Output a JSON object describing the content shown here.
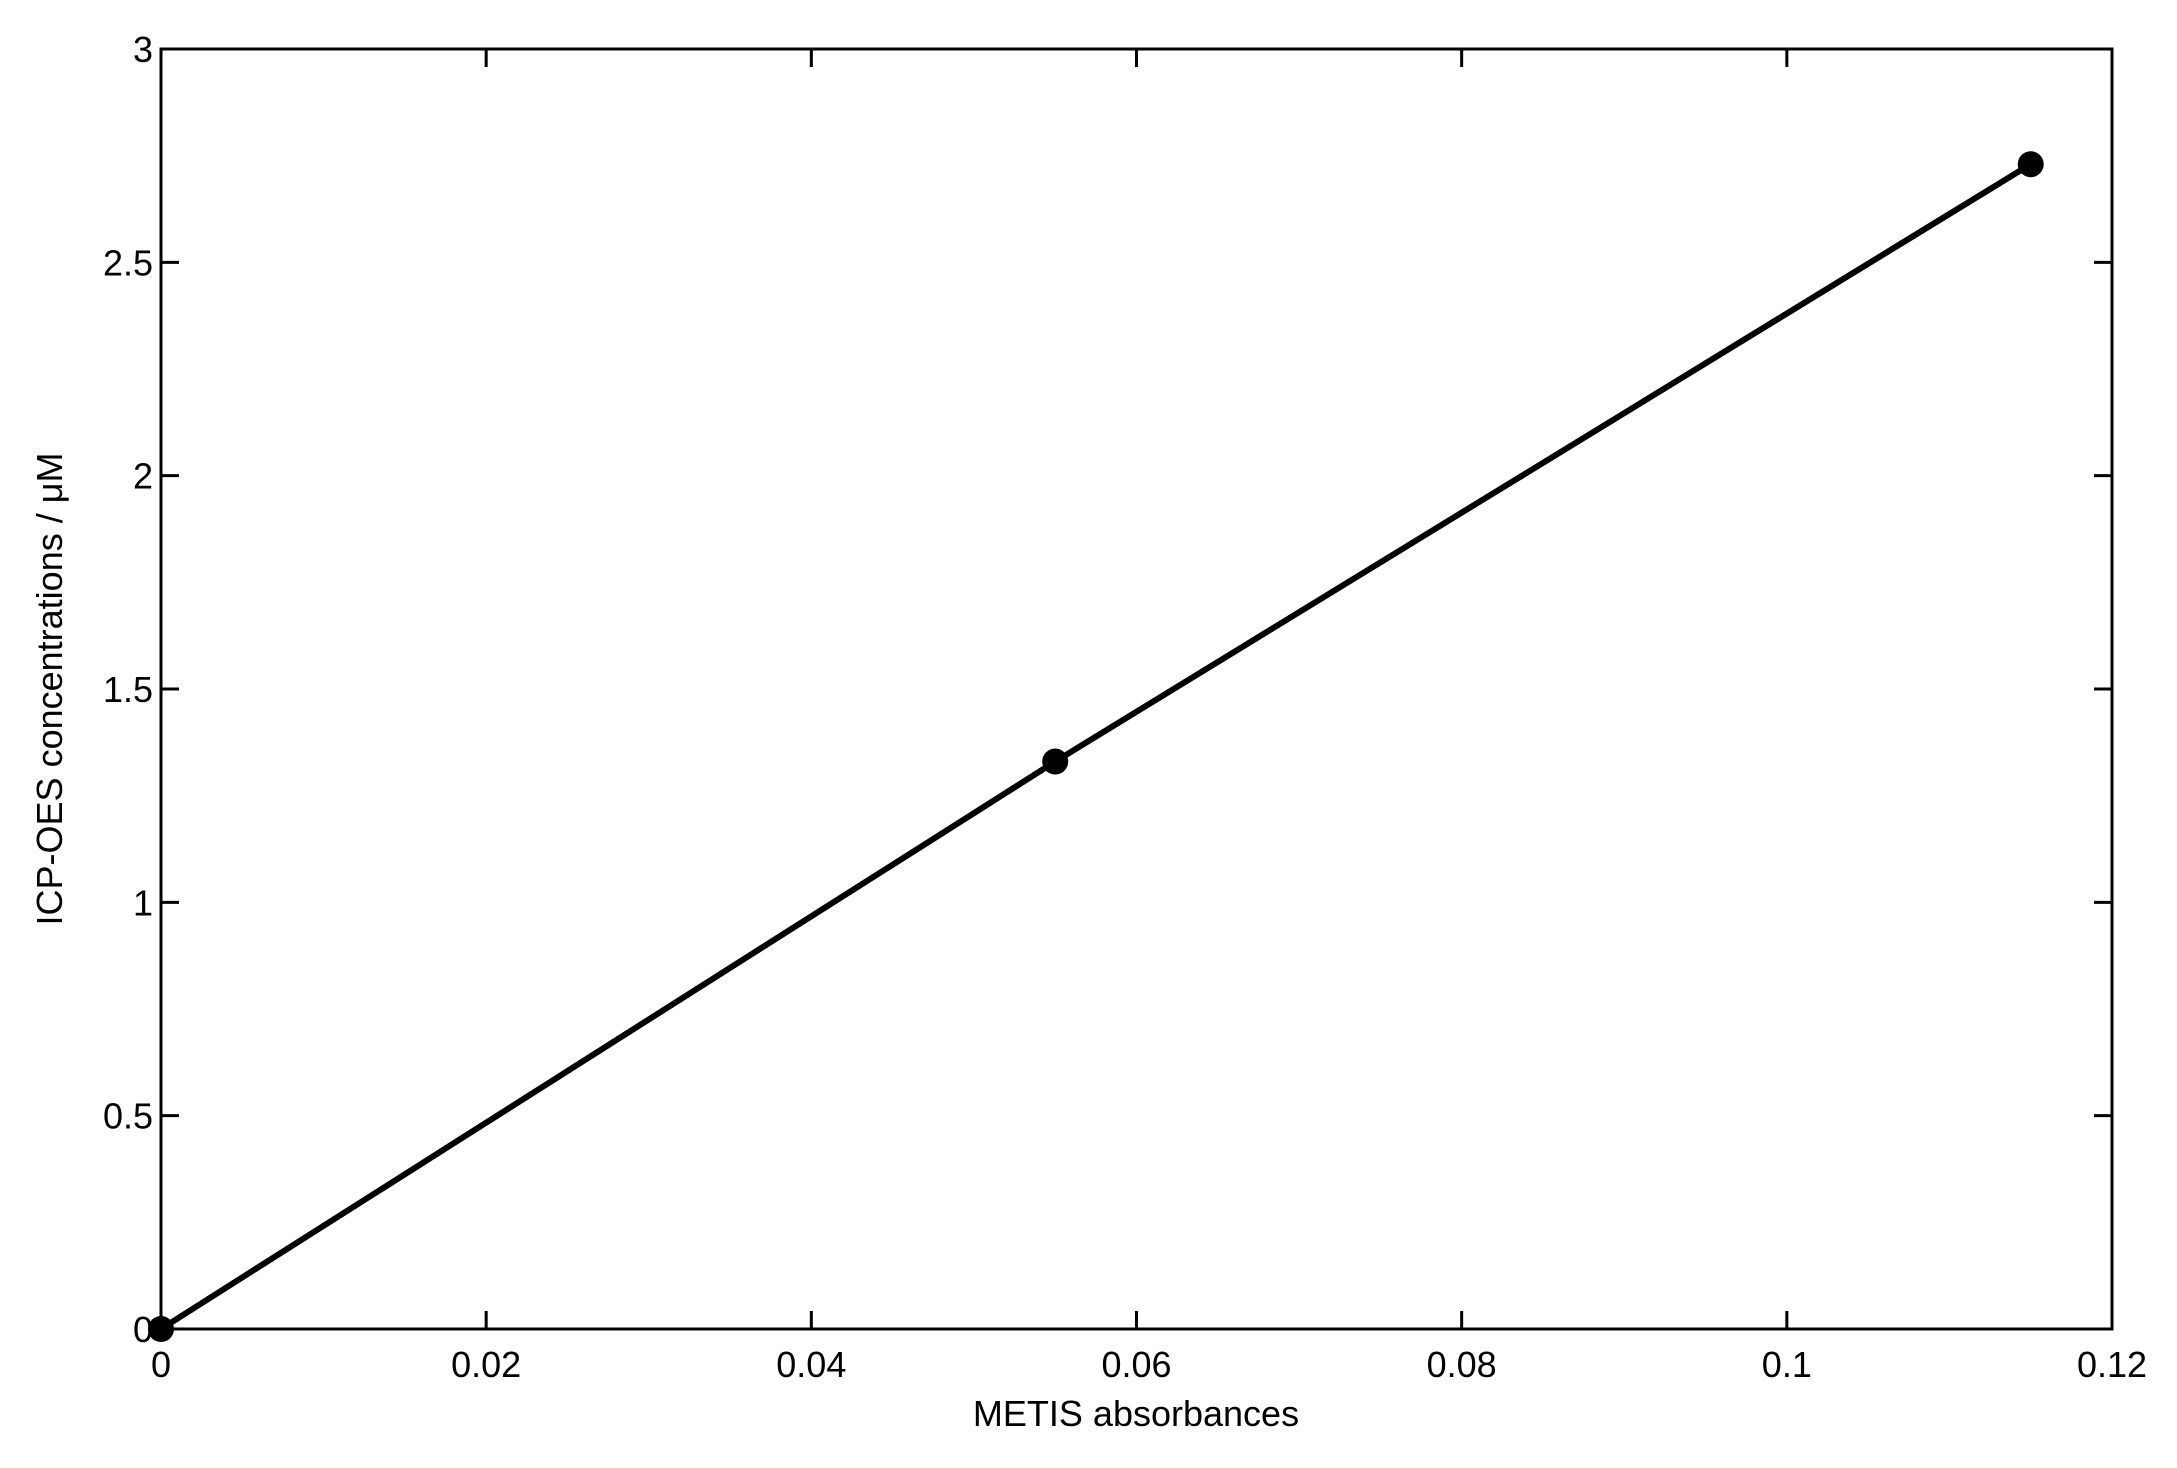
{
  "chart_data": {
    "type": "line",
    "xlabel": "METIS absorbances",
    "ylabel": "ICP-OES concentrations / μM",
    "x": [
      0,
      0.055,
      0.115
    ],
    "series": [
      {
        "color": "#000000",
        "values": [
          0,
          1.33,
          2.73
        ]
      }
    ],
    "xlim": [
      0,
      0.12
    ],
    "xticks": [
      0,
      0.02,
      0.04,
      0.06,
      0.08,
      0.1,
      0.12
    ],
    "ylim": [
      0,
      3
    ],
    "yticks": [
      0,
      0.5,
      1,
      1.5,
      2,
      2.5,
      3
    ],
    "grid": false,
    "markers": true
  }
}
